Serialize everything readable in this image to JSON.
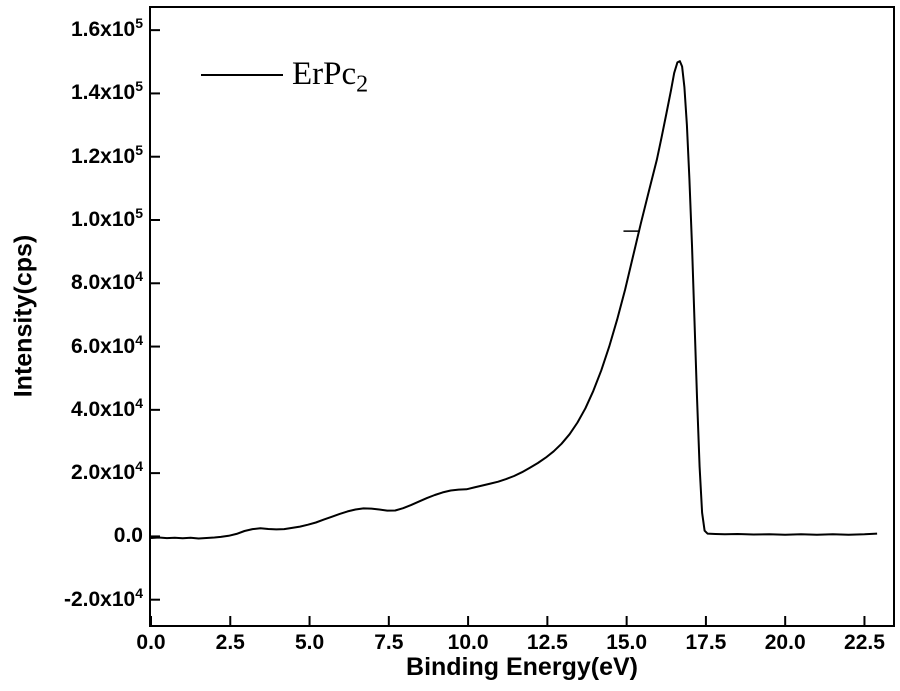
{
  "figure": {
    "background": "#ffffff",
    "frame_color": "#000000"
  },
  "chart_data": {
    "type": "line",
    "title": "",
    "xlabel": "Binding Energy(eV)",
    "ylabel": "Intensity(cps)",
    "xlim": [
      0,
      23.4
    ],
    "ylim": [
      -28000,
      167000
    ],
    "grid": false,
    "legend": {
      "base": "ErPc",
      "sub": "2",
      "position": "top-left"
    },
    "x_ticks": [
      {
        "v": 0,
        "label": "0.0"
      },
      {
        "v": 2.5,
        "label": "2.5"
      },
      {
        "v": 5.0,
        "label": "5.0"
      },
      {
        "v": 7.5,
        "label": "7.5"
      },
      {
        "v": 10.0,
        "label": "10.0"
      },
      {
        "v": 12.5,
        "label": "12.5"
      },
      {
        "v": 15.0,
        "label": "15.0"
      },
      {
        "v": 17.5,
        "label": "17.5"
      },
      {
        "v": 20.0,
        "label": "20.0"
      },
      {
        "v": 22.5,
        "label": "22.5"
      }
    ],
    "y_ticks": [
      {
        "v": 160000,
        "base": "1.6x10",
        "exp": "5"
      },
      {
        "v": 140000,
        "base": "1.4x10",
        "exp": "5"
      },
      {
        "v": 120000,
        "base": "1.2x10",
        "exp": "5"
      },
      {
        "v": 100000,
        "base": "1.0x10",
        "exp": "5"
      },
      {
        "v": 80000,
        "base": "8.0x10",
        "exp": "4"
      },
      {
        "v": 60000,
        "base": "6.0x10",
        "exp": "4"
      },
      {
        "v": 40000,
        "base": "4.0x10",
        "exp": "4"
      },
      {
        "v": 20000,
        "base": "2.0x10",
        "exp": "4"
      },
      {
        "v": 0,
        "base": "0.0",
        "exp": ""
      },
      {
        "v": -20000,
        "base": "-2.0x10",
        "exp": "4"
      }
    ],
    "annotation_dash": {
      "x1": 14.9,
      "x2": 15.42,
      "y": 96500
    },
    "series": [
      {
        "name": "ErPc2",
        "color": "#000000",
        "points": [
          [
            0.0,
            -500
          ],
          [
            0.25,
            -350
          ],
          [
            0.5,
            -550
          ],
          [
            0.75,
            -450
          ],
          [
            1.0,
            -600
          ],
          [
            1.25,
            -450
          ],
          [
            1.5,
            -650
          ],
          [
            1.75,
            -500
          ],
          [
            2.0,
            -350
          ],
          [
            2.2,
            -150
          ],
          [
            2.45,
            200
          ],
          [
            2.7,
            800
          ],
          [
            2.95,
            1700
          ],
          [
            3.2,
            2300
          ],
          [
            3.45,
            2550
          ],
          [
            3.7,
            2350
          ],
          [
            3.95,
            2200
          ],
          [
            4.2,
            2300
          ],
          [
            4.45,
            2700
          ],
          [
            4.7,
            3100
          ],
          [
            4.95,
            3700
          ],
          [
            5.2,
            4400
          ],
          [
            5.45,
            5300
          ],
          [
            5.7,
            6200
          ],
          [
            5.95,
            7100
          ],
          [
            6.2,
            7900
          ],
          [
            6.45,
            8500
          ],
          [
            6.7,
            8850
          ],
          [
            6.95,
            8800
          ],
          [
            7.2,
            8500
          ],
          [
            7.45,
            8150
          ],
          [
            7.7,
            8200
          ],
          [
            7.95,
            8900
          ],
          [
            8.2,
            9900
          ],
          [
            8.45,
            11000
          ],
          [
            8.7,
            12100
          ],
          [
            8.95,
            13100
          ],
          [
            9.2,
            13900
          ],
          [
            9.45,
            14500
          ],
          [
            9.7,
            14800
          ],
          [
            9.95,
            14900
          ],
          [
            10.2,
            15500
          ],
          [
            10.45,
            16100
          ],
          [
            10.7,
            16700
          ],
          [
            10.95,
            17300
          ],
          [
            11.2,
            18100
          ],
          [
            11.45,
            19100
          ],
          [
            11.7,
            20300
          ],
          [
            11.95,
            21700
          ],
          [
            12.2,
            23200
          ],
          [
            12.45,
            24900
          ],
          [
            12.7,
            26900
          ],
          [
            12.95,
            29300
          ],
          [
            13.2,
            32300
          ],
          [
            13.45,
            36000
          ],
          [
            13.7,
            40500
          ],
          [
            13.95,
            46000
          ],
          [
            14.2,
            52500
          ],
          [
            14.45,
            60000
          ],
          [
            14.7,
            68500
          ],
          [
            14.95,
            78000
          ],
          [
            15.2,
            88500
          ],
          [
            15.45,
            99000
          ],
          [
            15.7,
            109000
          ],
          [
            15.95,
            119000
          ],
          [
            16.1,
            126000
          ],
          [
            16.25,
            133500
          ],
          [
            16.4,
            141000
          ],
          [
            16.5,
            146500
          ],
          [
            16.6,
            149800
          ],
          [
            16.68,
            150200
          ],
          [
            16.75,
            148500
          ],
          [
            16.82,
            142000
          ],
          [
            16.9,
            130000
          ],
          [
            16.98,
            113000
          ],
          [
            17.06,
            92000
          ],
          [
            17.14,
            68000
          ],
          [
            17.22,
            44000
          ],
          [
            17.3,
            22000
          ],
          [
            17.38,
            7500
          ],
          [
            17.46,
            1800
          ],
          [
            17.55,
            900
          ],
          [
            17.8,
            750
          ],
          [
            18.1,
            650
          ],
          [
            18.5,
            750
          ],
          [
            19.0,
            600
          ],
          [
            19.5,
            700
          ],
          [
            20.0,
            550
          ],
          [
            20.5,
            650
          ],
          [
            21.0,
            550
          ],
          [
            21.5,
            650
          ],
          [
            22.0,
            550
          ],
          [
            22.5,
            650
          ],
          [
            22.9,
            900
          ]
        ]
      }
    ]
  }
}
